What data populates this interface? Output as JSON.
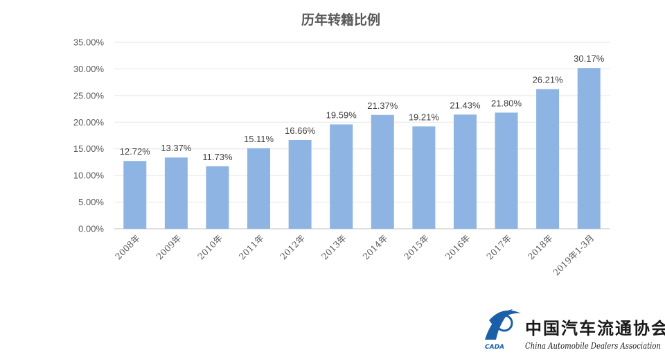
{
  "chart_data": {
    "type": "bar",
    "title": "历年转籍比例",
    "categories": [
      "2008年",
      "2009年",
      "2010年",
      "2011年",
      "2012年",
      "2013年",
      "2014年",
      "2015年",
      "2016年",
      "2017年",
      "2018年",
      "2019年1-3月"
    ],
    "values": [
      12.72,
      13.37,
      11.73,
      15.11,
      16.66,
      19.59,
      21.37,
      19.21,
      21.43,
      21.8,
      26.21,
      30.17
    ],
    "data_labels": [
      "12.72%",
      "13.37%",
      "11.73%",
      "15.11%",
      "16.66%",
      "19.59%",
      "21.37%",
      "19.21%",
      "21.43%",
      "21.80%",
      "26.21%",
      "30.17%"
    ],
    "y_ticks": [
      "0.00%",
      "5.00%",
      "10.00%",
      "15.00%",
      "20.00%",
      "25.00%",
      "30.00%",
      "35.00%"
    ],
    "ylim": [
      0,
      35
    ],
    "grid": true,
    "legend": "none",
    "bar_color": "#8db4e2",
    "xlabel": "",
    "ylabel": ""
  },
  "logo": {
    "chinese_name": "中国汽车流通协会",
    "english_name": "China Automobile Dealers Association",
    "abbreviation": "CADA",
    "color": "#1b5fa8"
  }
}
